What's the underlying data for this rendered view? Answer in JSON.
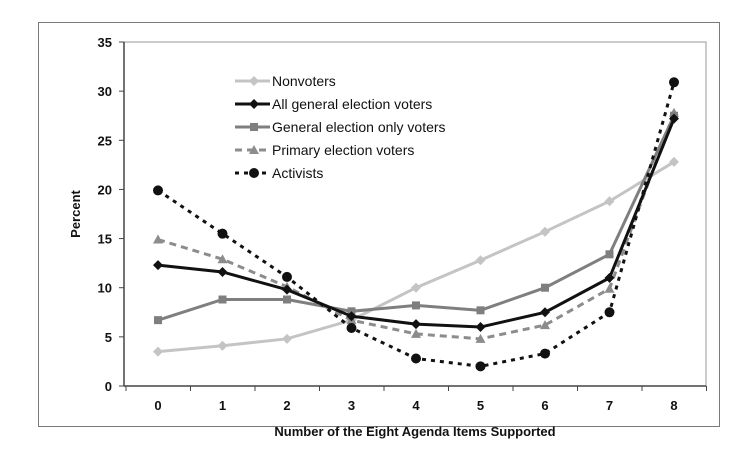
{
  "chart_data": {
    "type": "line",
    "xlabel": "Number of the Eight Agenda Items Supported",
    "ylabel": "Percent",
    "x": [
      0,
      1,
      2,
      3,
      4,
      5,
      6,
      7,
      8
    ],
    "ylim": [
      0,
      35
    ],
    "yticks": [
      0,
      5,
      10,
      15,
      20,
      25,
      30,
      35
    ],
    "grid": false,
    "legend": "top-left",
    "series": [
      {
        "name": "Nonvoters",
        "values": [
          3.5,
          4.1,
          4.8,
          6.7,
          10.0,
          12.8,
          15.7,
          18.8,
          22.8
        ],
        "color": "#c4c4c4",
        "dash": "none",
        "marker": "diamond"
      },
      {
        "name": "All general election voters",
        "values": [
          12.3,
          11.6,
          9.8,
          7.1,
          6.3,
          6.0,
          7.5,
          11.0,
          27.2
        ],
        "color": "#111111",
        "dash": "none",
        "marker": "diamond"
      },
      {
        "name": "General election only voters",
        "values": [
          6.7,
          8.8,
          8.8,
          7.6,
          8.2,
          7.7,
          10.0,
          13.4,
          27.5
        ],
        "color": "#7f7f7f",
        "dash": "none",
        "marker": "square"
      },
      {
        "name": "Primary election voters",
        "values": [
          14.9,
          12.9,
          10.1,
          6.7,
          5.3,
          4.8,
          6.2,
          9.9,
          27.8
        ],
        "color": "#8c8c8c",
        "dash": "dashed",
        "marker": "triangle"
      },
      {
        "name": "Activists",
        "values": [
          19.9,
          15.5,
          11.1,
          5.9,
          2.8,
          2.0,
          3.3,
          7.5,
          30.9
        ],
        "color": "#111111",
        "dash": "dotted",
        "marker": "circle"
      }
    ]
  }
}
